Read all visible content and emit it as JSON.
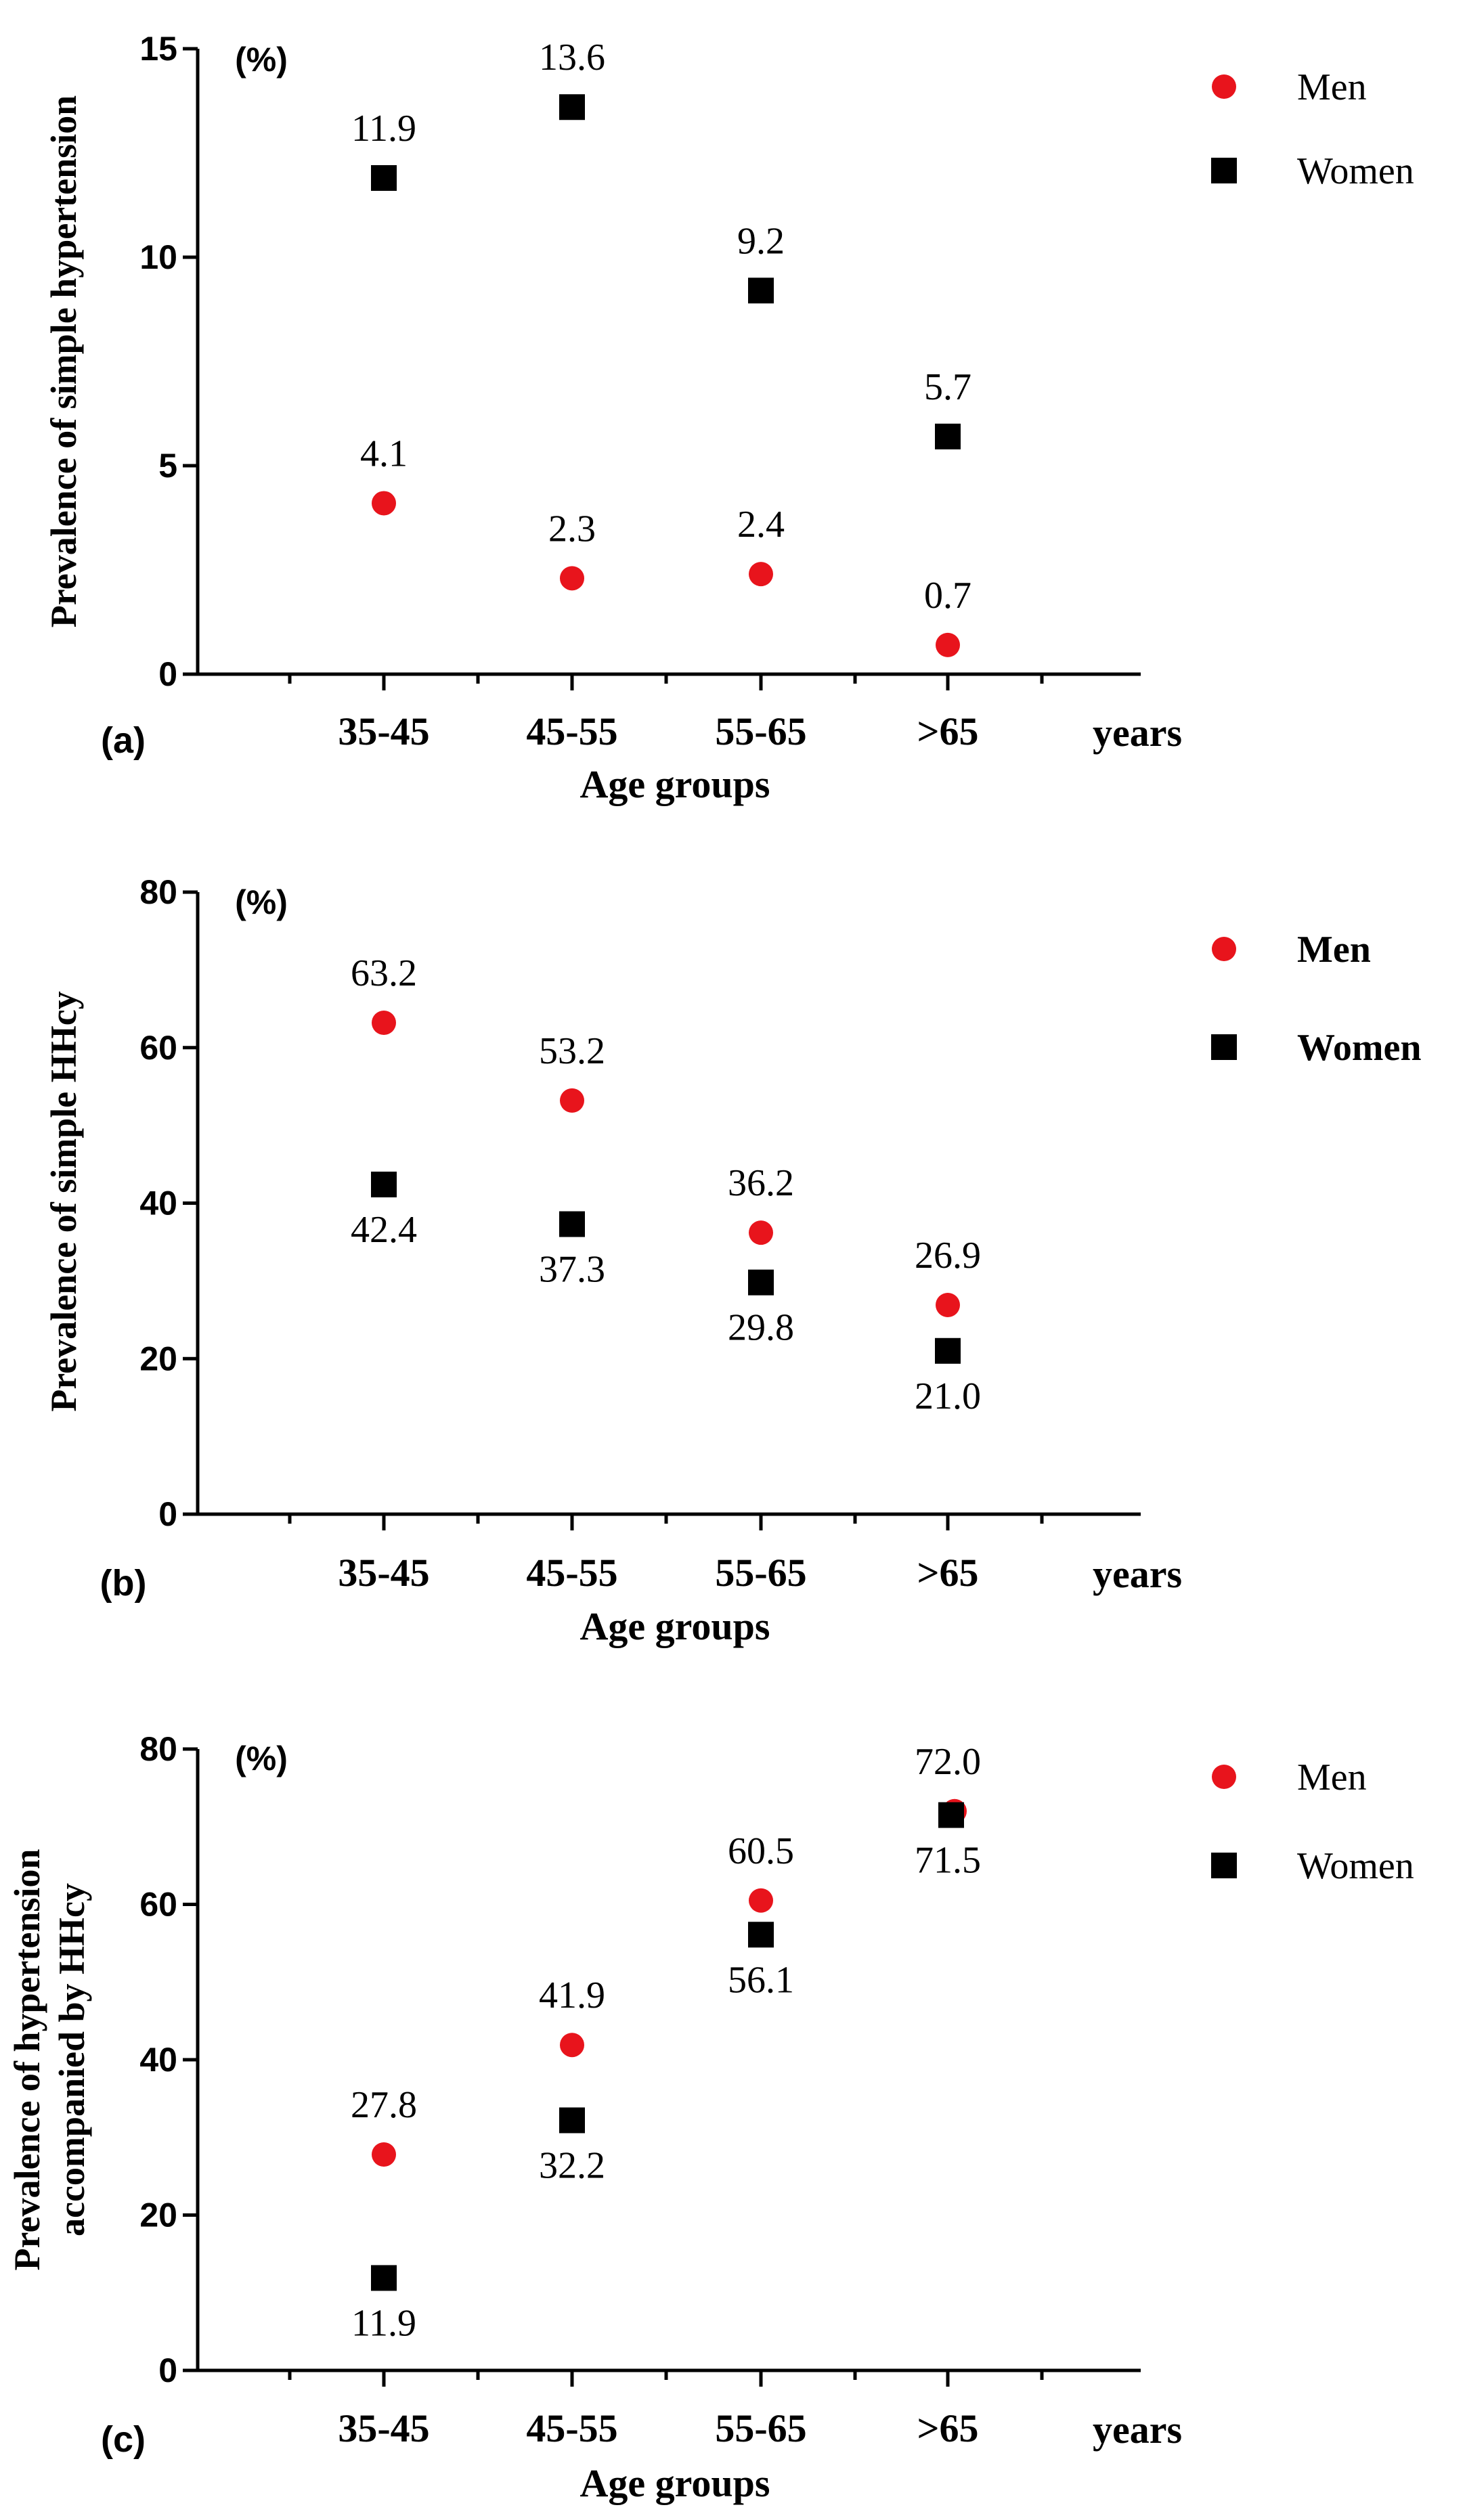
{
  "chart_data": [
    {
      "type": "scatter",
      "panel_label": "(a)",
      "unit_label": "(%)",
      "ylabel": "Prevalence of  simple hypertension",
      "xlabel": "Age groups",
      "x_unit": "years",
      "categories": [
        "35-45",
        "45-55",
        "55-65",
        ">65"
      ],
      "ylim": [
        0,
        15
      ],
      "yticks": [
        0,
        5,
        10,
        15
      ],
      "legend_position": "top-right",
      "series": [
        {
          "name": "Men",
          "marker": "circle",
          "color": "#e8141c",
          "values": [
            4.1,
            2.3,
            2.4,
            0.7
          ],
          "labels": [
            "4.1",
            "2.3",
            "2.4",
            "0.7"
          ],
          "label_side": "above"
        },
        {
          "name": "Women",
          "marker": "square",
          "color": "#000000",
          "values": [
            11.9,
            13.6,
            9.2,
            5.7
          ],
          "labels": [
            "11.9",
            "13.6",
            "9.2",
            "5.7"
          ],
          "label_side": "above"
        }
      ]
    },
    {
      "type": "scatter",
      "panel_label": "(b)",
      "unit_label": "(%)",
      "ylabel": "Prevalence of  simple HHcy",
      "xlabel": "Age groups",
      "x_unit": "years",
      "categories": [
        "35-45",
        "45-55",
        "55-65",
        ">65"
      ],
      "ylim": [
        0,
        80
      ],
      "yticks": [
        0,
        20,
        40,
        60,
        80
      ],
      "legend_position": "top-right",
      "legend_bold": true,
      "series": [
        {
          "name": "Men",
          "marker": "circle",
          "color": "#e8141c",
          "values": [
            63.2,
            53.2,
            36.2,
            26.9
          ],
          "labels": [
            "63.2",
            "53.2",
            "36.2",
            "26.9"
          ],
          "label_side": "above"
        },
        {
          "name": "Women",
          "marker": "square",
          "color": "#000000",
          "values": [
            42.4,
            37.3,
            29.8,
            21.0
          ],
          "labels": [
            "42.4",
            "37.3",
            "29.8",
            "21.0"
          ],
          "label_side": "below"
        }
      ]
    },
    {
      "type": "scatter",
      "panel_label": "(c)",
      "unit_label": "(%)",
      "ylabel": "Prevalence of hypertension|accompanied by HHcy",
      "xlabel": "Age groups",
      "x_unit": "years",
      "categories": [
        "35-45",
        "45-55",
        "55-65",
        ">65"
      ],
      "ylim": [
        0,
        80
      ],
      "yticks": [
        0,
        20,
        40,
        60,
        80
      ],
      "legend_position": "top-right",
      "series": [
        {
          "name": "Men",
          "marker": "circle",
          "color": "#e8141c",
          "values": [
            27.8,
            41.9,
            60.5,
            72.0
          ],
          "labels": [
            "27.8",
            "41.9",
            "60.5",
            "72.0"
          ],
          "label_side": "above"
        },
        {
          "name": "Women",
          "marker": "square",
          "color": "#000000",
          "values": [
            11.9,
            32.2,
            56.1,
            71.5
          ],
          "labels": [
            "11.9",
            "32.2",
            "56.1",
            "71.5"
          ],
          "label_side": "below"
        }
      ]
    }
  ]
}
